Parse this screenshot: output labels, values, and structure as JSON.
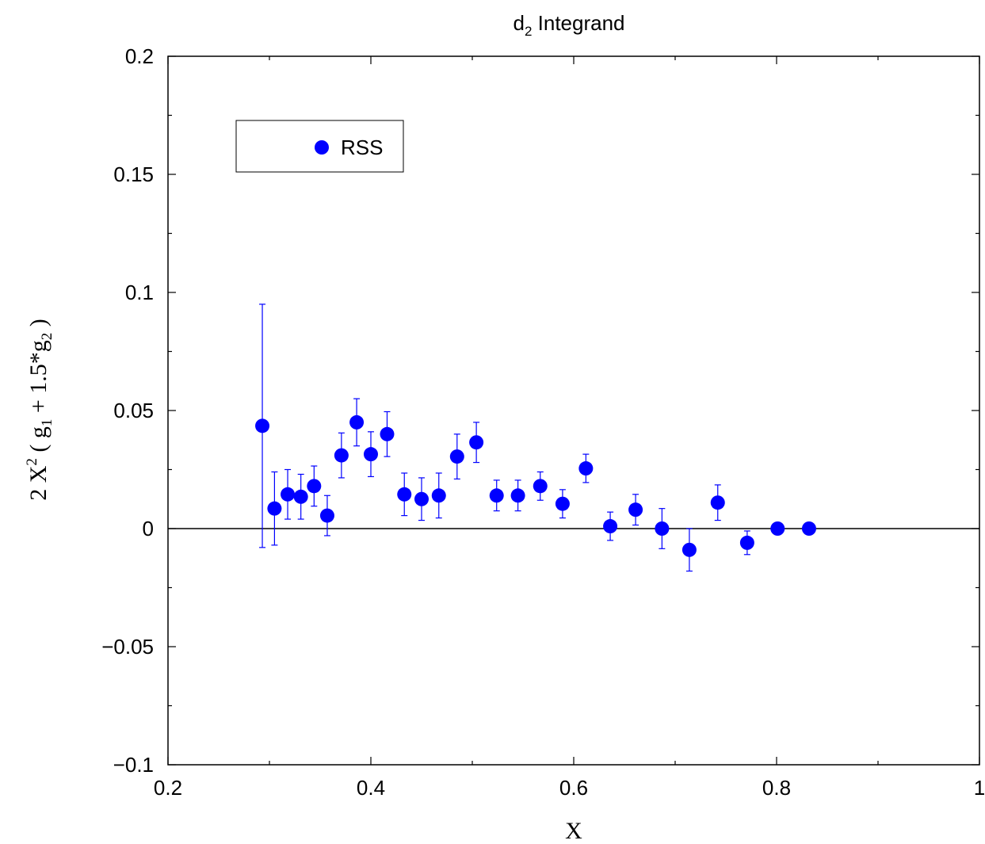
{
  "chart_data": {
    "type": "scatter",
    "title": {
      "main": "d",
      "sub": "2",
      "rest": " Integrand"
    },
    "xlabel": "X",
    "ylabel": {
      "parts": [
        {
          "text": "2 X",
          "shift": "none"
        },
        {
          "text": "2",
          "shift": "super"
        },
        {
          "text": " ( g",
          "shift": "none"
        },
        {
          "text": "1",
          "shift": "sub"
        },
        {
          "text": " + 1.5*g",
          "shift": "none"
        },
        {
          "text": "2",
          "shift": "sub"
        },
        {
          "text": " )",
          "shift": "none"
        }
      ]
    },
    "xlim": [
      0.2,
      1.0
    ],
    "ylim": [
      -0.1,
      0.2
    ],
    "x_ticks": [
      0.2,
      0.4,
      0.6,
      0.8,
      1.0
    ],
    "x_tick_labels": [
      "0.2",
      "0.4",
      "0.6",
      "0.8",
      "1"
    ],
    "x_minor_step": 0.1,
    "y_ticks": [
      -0.1,
      -0.05,
      0,
      0.05,
      0.1,
      0.15,
      0.2
    ],
    "y_tick_labels": [
      "−0.1",
      "−0.05",
      "0",
      "0.05",
      "0.1",
      "0.15",
      "0.2"
    ],
    "y_minor_step": 0.025,
    "zero_line": true,
    "grid": false,
    "legend": {
      "position": "top-left",
      "entries": [
        "RSS"
      ]
    },
    "colors": {
      "series": "#0000ff",
      "axes": "#000000"
    },
    "series": [
      {
        "name": "RSS",
        "points": [
          {
            "x": 0.293,
            "y": 0.0435,
            "err": 0.0515
          },
          {
            "x": 0.305,
            "y": 0.0085,
            "err": 0.0155
          },
          {
            "x": 0.318,
            "y": 0.0145,
            "err": 0.0105
          },
          {
            "x": 0.331,
            "y": 0.0135,
            "err": 0.0095
          },
          {
            "x": 0.344,
            "y": 0.018,
            "err": 0.0085
          },
          {
            "x": 0.357,
            "y": 0.0055,
            "err": 0.0085
          },
          {
            "x": 0.371,
            "y": 0.031,
            "err": 0.0095
          },
          {
            "x": 0.386,
            "y": 0.045,
            "err": 0.01
          },
          {
            "x": 0.4,
            "y": 0.0315,
            "err": 0.0095
          },
          {
            "x": 0.416,
            "y": 0.04,
            "err": 0.0095
          },
          {
            "x": 0.433,
            "y": 0.0145,
            "err": 0.009
          },
          {
            "x": 0.45,
            "y": 0.0125,
            "err": 0.009
          },
          {
            "x": 0.467,
            "y": 0.014,
            "err": 0.0095
          },
          {
            "x": 0.485,
            "y": 0.0305,
            "err": 0.0095
          },
          {
            "x": 0.504,
            "y": 0.0365,
            "err": 0.0085
          },
          {
            "x": 0.524,
            "y": 0.014,
            "err": 0.0065
          },
          {
            "x": 0.545,
            "y": 0.014,
            "err": 0.0065
          },
          {
            "x": 0.567,
            "y": 0.018,
            "err": 0.006
          },
          {
            "x": 0.589,
            "y": 0.0105,
            "err": 0.006
          },
          {
            "x": 0.612,
            "y": 0.0255,
            "err": 0.006
          },
          {
            "x": 0.636,
            "y": 0.001,
            "err": 0.006
          },
          {
            "x": 0.661,
            "y": 0.008,
            "err": 0.0065
          },
          {
            "x": 0.687,
            "y": 0.0,
            "err": 0.0085
          },
          {
            "x": 0.714,
            "y": -0.009,
            "err": 0.009
          },
          {
            "x": 0.742,
            "y": 0.011,
            "err": 0.0075
          },
          {
            "x": 0.771,
            "y": -0.006,
            "err": 0.005
          },
          {
            "x": 0.801,
            "y": 0.0,
            "err": 0.0025
          },
          {
            "x": 0.832,
            "y": 0.0,
            "err": 0.001
          }
        ]
      }
    ]
  }
}
